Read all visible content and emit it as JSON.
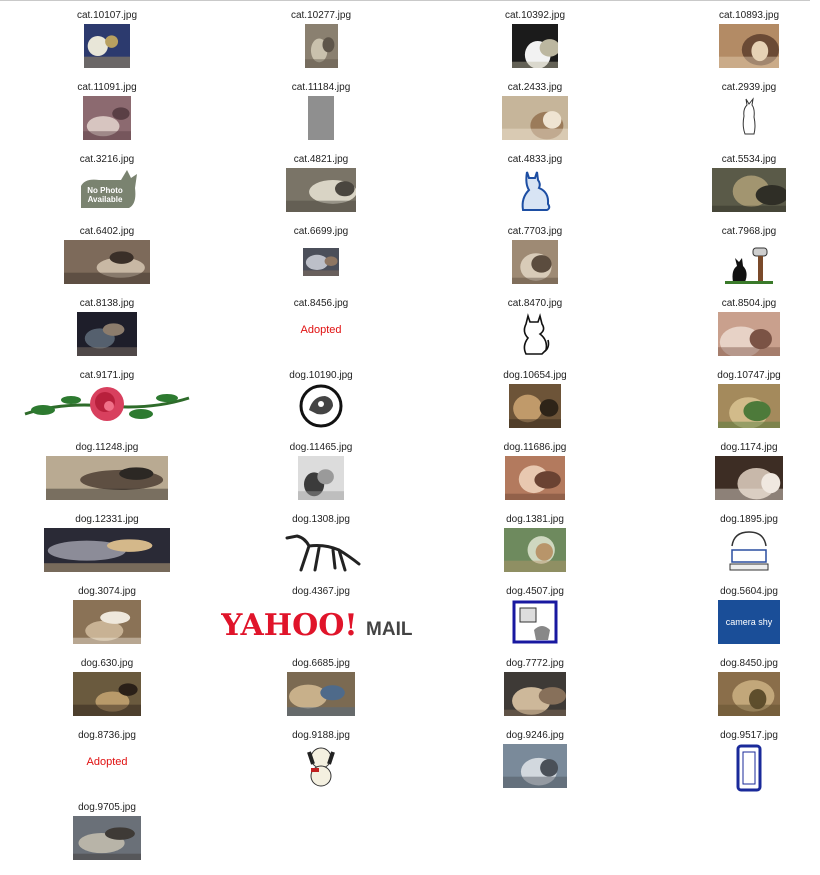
{
  "gallery": {
    "files": [
      "cat.10107.jpg",
      "cat.10277.jpg",
      "cat.10392.jpg",
      "cat.10893.jpg",
      "cat.11091.jpg",
      "cat.11184.jpg",
      "cat.2433.jpg",
      "cat.2939.jpg",
      "cat.3216.jpg",
      "cat.4821.jpg",
      "cat.4833.jpg",
      "cat.5534.jpg",
      "cat.6402.jpg",
      "cat.6699.jpg",
      "cat.7703.jpg",
      "cat.7968.jpg",
      "cat.8138.jpg",
      "cat.8456.jpg",
      "cat.8470.jpg",
      "cat.8504.jpg",
      "cat.9171.jpg",
      "dog.10190.jpg",
      "dog.10654.jpg",
      "dog.10747.jpg",
      "dog.11248.jpg",
      "dog.11465.jpg",
      "dog.11686.jpg",
      "dog.1174.jpg",
      "dog.12331.jpg",
      "dog.1308.jpg",
      "dog.1381.jpg",
      "dog.1895.jpg",
      "dog.3074.jpg",
      "dog.4367.jpg",
      "dog.4507.jpg",
      "dog.5604.jpg",
      "dog.630.jpg",
      "dog.6685.jpg",
      "dog.7772.jpg",
      "dog.8450.jpg",
      "dog.8736.jpg",
      "dog.9188.jpg",
      "dog.9246.jpg",
      "dog.9517.jpg",
      "dog.9705.jpg"
    ],
    "image_text": {
      "no_photo": "No Photo Available",
      "adopted": "Adopted",
      "yahoo": "YAHOO!",
      "mail": "MAIL",
      "camera_shy": "camera shy"
    }
  }
}
